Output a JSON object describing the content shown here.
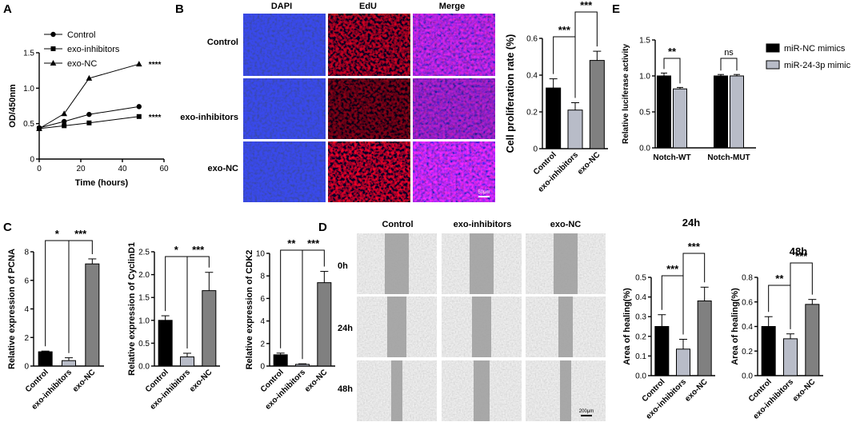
{
  "panels": {
    "A": "A",
    "B": "B",
    "C": "C",
    "D": "D",
    "E": "E"
  },
  "colors": {
    "black": "#000000",
    "light": "#b8bcc8",
    "dark": "#808080",
    "dapi": "#1a2a9a",
    "edu": "#b01818",
    "scratch": "#b8b8b8"
  },
  "micro_B": {
    "columns": [
      "DAPI",
      "EdU",
      "Merge"
    ],
    "rows": [
      "Control",
      "exo-inhibitors",
      "exo-NC"
    ],
    "scale_bar": "50μm"
  },
  "micro_D": {
    "columns": [
      "Control",
      "exo-inhibitors",
      "exo-NC"
    ],
    "rows": [
      "0h",
      "24h",
      "48h"
    ],
    "scale_bar": "200μm"
  },
  "chart_data": [
    {
      "id": "A",
      "type": "line",
      "xlabel": "Time (hours)",
      "ylabel": "OD/450nm",
      "xlim": [
        0,
        60
      ],
      "ylim": [
        0,
        1.5
      ],
      "xticks": [
        "0",
        "20",
        "40",
        "60"
      ],
      "yticks": [
        "0",
        "0.5",
        "1.0",
        "1.5"
      ],
      "legend_position": "top-left",
      "series": [
        {
          "name": "Control",
          "marker": "circle",
          "x": [
            0,
            12,
            24,
            48
          ],
          "y": [
            0.44,
            0.53,
            0.63,
            0.74
          ]
        },
        {
          "name": "exo-inhibitors",
          "marker": "square",
          "x": [
            0,
            12,
            24,
            48
          ],
          "y": [
            0.43,
            0.47,
            0.51,
            0.6
          ],
          "sig": "****"
        },
        {
          "name": "exo-NC",
          "marker": "triangle",
          "x": [
            0,
            12,
            24,
            48
          ],
          "y": [
            0.43,
            0.64,
            1.14,
            1.34
          ],
          "sig": "****"
        }
      ]
    },
    {
      "id": "B",
      "type": "bar",
      "ylabel": "Cell proliferation rate (%)",
      "ylim": [
        0,
        0.6
      ],
      "yticks": [
        "0",
        "0.2",
        "0.4",
        "0.6"
      ],
      "categories": [
        "Control",
        "exo-inhibitors",
        "exo-NC"
      ],
      "values": [
        0.33,
        0.21,
        0.48
      ],
      "errors": [
        0.05,
        0.04,
        0.05
      ],
      "colors": [
        "#000000",
        "#b8bcc8",
        "#808080"
      ],
      "brackets": [
        {
          "from": 0,
          "to": 1,
          "label": "***"
        },
        {
          "from": 1,
          "to": 2,
          "label": "***"
        }
      ]
    },
    {
      "id": "E",
      "type": "bar",
      "ylabel": "Relative luciferase activity",
      "ylim": [
        0,
        1.5
      ],
      "yticks": [
        "0.0",
        "0.5",
        "1.0",
        "1.5"
      ],
      "categories": [
        "Notch-WT",
        "Notch-MUT"
      ],
      "legend_position": "right",
      "series": [
        {
          "name": "miR-NC mimics",
          "values": [
            1.0,
            1.0
          ],
          "errors": [
            0.04,
            0.02
          ]
        },
        {
          "name": "miR-24-3p mimic",
          "values": [
            0.82,
            1.0
          ],
          "errors": [
            0.02,
            0.02
          ]
        }
      ],
      "brackets": [
        {
          "group": 0,
          "label": "**"
        },
        {
          "group": 1,
          "label": "ns"
        }
      ]
    },
    {
      "id": "C1",
      "type": "bar",
      "ylabel": "Relative  expression of PCNA",
      "ylim": [
        0,
        8
      ],
      "yticks": [
        "0",
        "2",
        "4",
        "6",
        "8"
      ],
      "categories": [
        "Control",
        "exo-inhibitors",
        "exo-NC"
      ],
      "values": [
        1.0,
        0.38,
        7.15
      ],
      "errors": [
        0.05,
        0.2,
        0.35
      ],
      "brackets": [
        {
          "from": 0,
          "to": 1,
          "label": "*"
        },
        {
          "from": 1,
          "to": 2,
          "label": "***"
        }
      ]
    },
    {
      "id": "C2",
      "type": "bar",
      "ylabel": "Relative  expression of CyclinD1",
      "ylim": [
        0,
        2.5
      ],
      "yticks": [
        "0.0",
        "0.5",
        "1.0",
        "1.5",
        "2.0",
        "2.5"
      ],
      "categories": [
        "Control",
        "exo-inhibitors",
        "exo-NC"
      ],
      "values": [
        1.0,
        0.2,
        1.65
      ],
      "errors": [
        0.1,
        0.08,
        0.4
      ],
      "brackets": [
        {
          "from": 0,
          "to": 1,
          "label": "*"
        },
        {
          "from": 1,
          "to": 2,
          "label": "***"
        }
      ]
    },
    {
      "id": "C3",
      "type": "bar",
      "ylabel": "Relative  expression of CDK2",
      "ylim": [
        0,
        10
      ],
      "yticks": [
        "0",
        "2",
        "4",
        "6",
        "8",
        "10"
      ],
      "categories": [
        "Control",
        "exo-inhibitors",
        "exo-NC"
      ],
      "values": [
        1.0,
        0.15,
        7.4
      ],
      "errors": [
        0.15,
        0.05,
        1.0
      ],
      "brackets": [
        {
          "from": 0,
          "to": 1,
          "label": "**"
        },
        {
          "from": 1,
          "to": 2,
          "label": "***"
        }
      ]
    },
    {
      "id": "D1",
      "type": "bar",
      "title": "24h",
      "ylabel": "Area of healing(%)",
      "ylim": [
        0,
        0.5
      ],
      "yticks": [
        "0.0",
        "0.1",
        "0.2",
        "0.3",
        "0.4",
        "0.5"
      ],
      "categories": [
        "Control",
        "exo-inhibitors",
        "exo-NC"
      ],
      "values": [
        0.25,
        0.135,
        0.38
      ],
      "errors": [
        0.06,
        0.05,
        0.07
      ],
      "brackets": [
        {
          "from": 0,
          "to": 1,
          "label": "***"
        },
        {
          "from": 1,
          "to": 2,
          "label": "***"
        }
      ]
    },
    {
      "id": "D2",
      "type": "bar",
      "title": "48h",
      "ylabel": "Area of healing(%)",
      "ylim": [
        0,
        0.8
      ],
      "yticks": [
        "0.0",
        "0.2",
        "0.4",
        "0.6",
        "0.8"
      ],
      "categories": [
        "Control",
        "exo-inhibitors",
        "exo-NC"
      ],
      "values": [
        0.4,
        0.3,
        0.58
      ],
      "errors": [
        0.08,
        0.04,
        0.04
      ],
      "brackets": [
        {
          "from": 0,
          "to": 1,
          "label": "**"
        },
        {
          "from": 1,
          "to": 2,
          "label": "***"
        }
      ]
    }
  ]
}
